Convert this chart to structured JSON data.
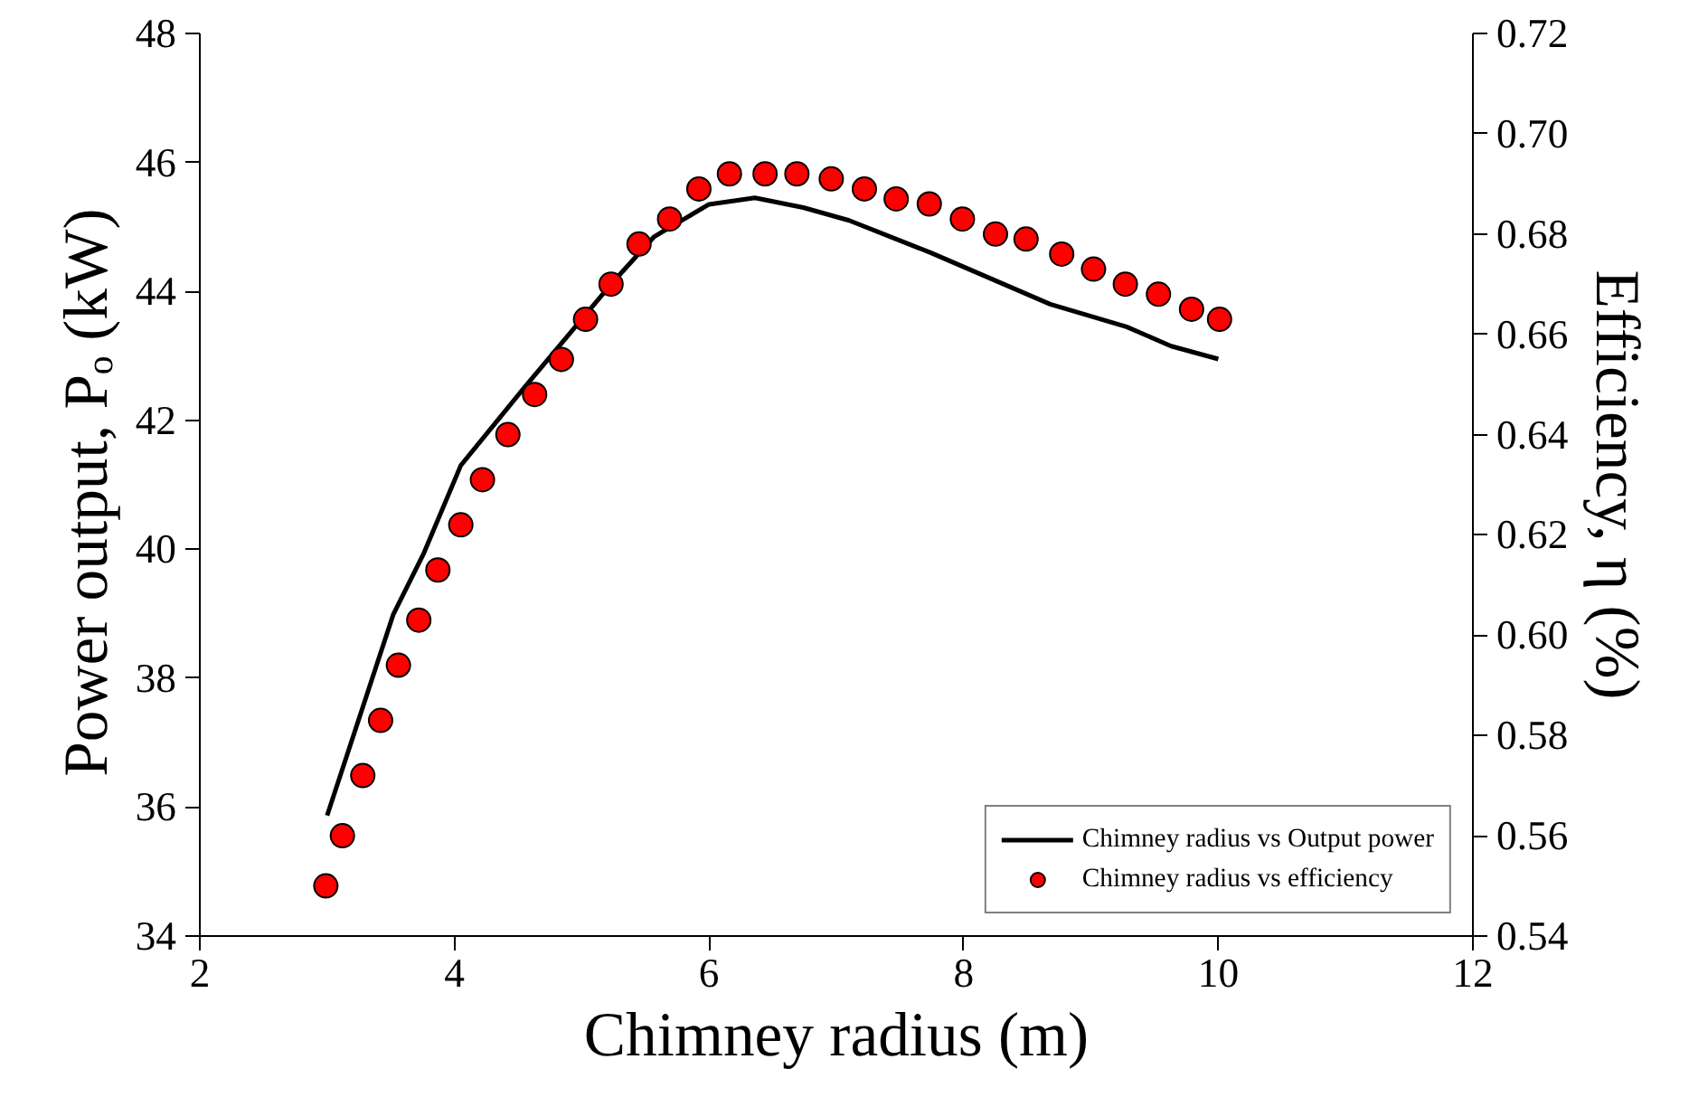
{
  "chart_data": {
    "type": "line",
    "xlabel": "Chimney radius (m)",
    "ylabel": "Power output, Pₒ  (kW)",
    "y2label": "Efficiency, η (%)",
    "xlim": [
      2,
      12
    ],
    "xticks": [
      2,
      4,
      6,
      8,
      10,
      12
    ],
    "ylim": [
      34,
      48
    ],
    "yticks": [
      34,
      36,
      38,
      40,
      42,
      44,
      46,
      48
    ],
    "y2lim": [
      0.54,
      0.72
    ],
    "y2ticks": [
      0.54,
      0.56,
      0.58,
      {
        "value": 0.6,
        "label": "0.60"
      },
      0.62,
      0.64,
      0.66,
      0.68,
      {
        "value": 0.7,
        "label": "0.70"
      },
      0.72
    ],
    "grid": false,
    "legend": "bottom right",
    "series": [
      {
        "name": "Chimney radius vs Output power",
        "color": "#000000",
        "line_style": "solid",
        "marker": "none",
        "x": [
          3.0,
          3.52,
          3.76,
          4.05,
          4.55,
          5.23,
          5.57,
          6.0,
          6.36,
          6.74,
          7.1,
          7.74,
          8.68,
          9.28,
          9.63,
          10.0
        ],
        "values": [
          35.87,
          38.99,
          39.94,
          41.3,
          42.51,
          44.11,
          44.85,
          45.35,
          45.45,
          45.3,
          45.1,
          44.6,
          43.8,
          43.45,
          43.15,
          42.95
        ]
      },
      {
        "name": "Chimney radius vs efficiency",
        "type": "scatter",
        "axis": "y2",
        "color": "#ff0000",
        "marker": "circle",
        "x": [
          2.99,
          3.12,
          3.28,
          3.42,
          3.56,
          3.72,
          3.87,
          4.05,
          4.22,
          4.42,
          4.63,
          4.84,
          5.03,
          5.23,
          5.45,
          5.69,
          5.92,
          6.16,
          6.44,
          6.69,
          6.96,
          7.22,
          7.47,
          7.73,
          7.99,
          8.25,
          8.49,
          8.77,
          9.02,
          9.27,
          9.53,
          9.79,
          10.01
        ],
        "values": [
          0.55,
          0.56,
          0.572,
          0.583,
          0.594,
          0.603,
          0.613,
          0.622,
          0.631,
          0.64,
          0.648,
          0.655,
          0.663,
          0.67,
          0.678,
          0.683,
          0.689,
          0.692,
          0.692,
          0.692,
          0.691,
          0.689,
          0.687,
          0.686,
          0.683,
          0.68,
          0.679,
          0.676,
          0.673,
          0.67,
          0.668,
          0.665,
          0.663
        ]
      }
    ]
  }
}
